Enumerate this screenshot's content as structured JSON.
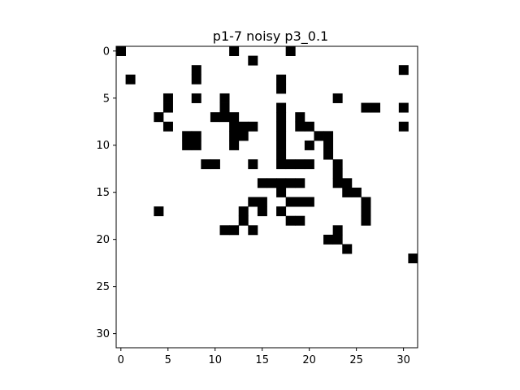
{
  "chart_data": {
    "type": "heatmap",
    "title": "p1-7 noisy p3_0.1",
    "xlabel": "",
    "ylabel": "",
    "size": [
      32,
      32
    ],
    "xlim": [
      -0.5,
      31.5
    ],
    "ylim": [
      31.5,
      -0.5
    ],
    "x_ticks": [
      0,
      5,
      10,
      15,
      20,
      25,
      30
    ],
    "y_ticks": [
      0,
      5,
      10,
      15,
      20,
      25,
      30
    ],
    "colormap": "binary",
    "colors": {
      "on": "#000000",
      "off": "#ffffff"
    },
    "grid": false,
    "rows": [
      "10000000000010000010000000000000",
      "00000000000000100000000000000000",
      "00000000100000000000000000000010",
      "01000000100000000100000000000000",
      "00000000000000000100000000000000",
      "00000100100100000000000100000000",
      "00000100000100000100000000110010",
      "00001000001110000101000000000000",
      "00000100000011100101100000000010",
      "00000001100011000100011000000000",
      "00000001100010000100101000000000",
      "00000000000000000100001000000000",
      "00000000011000100111100100000000",
      "00000000000000000000000100000000",
      "00000000000000011111000110000000",
      "00000000000000000100000011000000",
      "00000000000000110011100000100000",
      "00001000000001010100000000100000",
      "00000000000001000011000000100000",
      "00000000000110100000000100000000",
      "00000000000000000000001100000000",
      "00000000000000000000000010000000",
      "00000000000000000000000000000001",
      "00000000000000000000000000000000",
      "00000000000000000000000000000000",
      "00000000000000000000000000000000",
      "00000000000000000000000000000000",
      "00000000000000000000000000000000",
      "00000000000000000000000000000000",
      "00000000000000000000000000000000",
      "00000000000000000000000000000000",
      "00000000000000000000000000000000"
    ]
  }
}
